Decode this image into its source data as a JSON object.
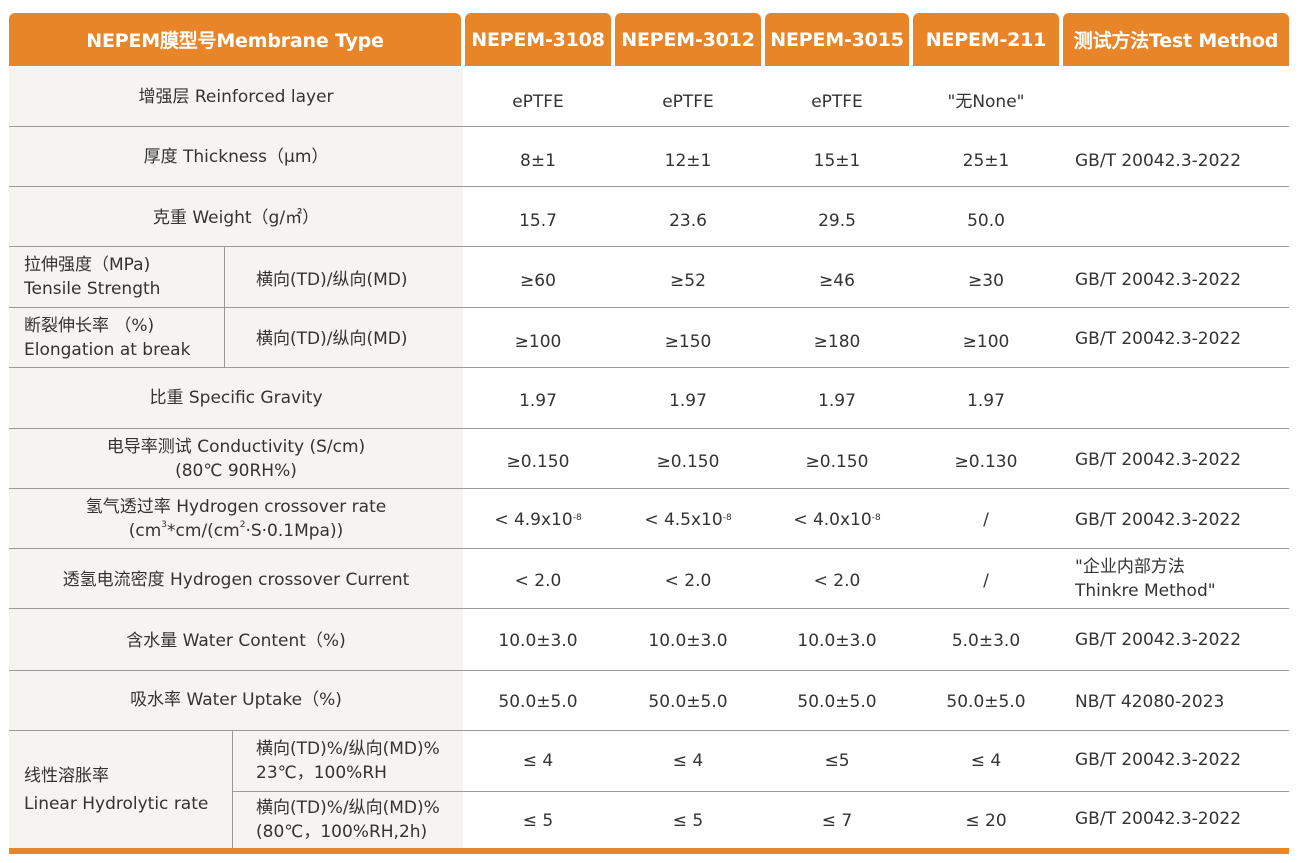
{
  "header": {
    "type_label": "NEPEM膜型号Membrane Type",
    "products": [
      "NEPEM-3108",
      "NEPEM-3012",
      "NEPEM-3015",
      "NEPEM-211"
    ],
    "method_label": "测试方法Test Method"
  },
  "rows": {
    "reinforced": {
      "label": "增强层 Reinforced layer",
      "values": [
        "ePTFE",
        "ePTFE",
        "ePTFE",
        "\"无None\""
      ],
      "method": ""
    },
    "thickness": {
      "label": "厚度 Thickness（μm）",
      "values": [
        "8±1",
        "12±1",
        "15±1",
        "25±1"
      ],
      "method": "GB/T 20042.3-2022"
    },
    "weight": {
      "label": "克重 Weight（g/㎡）",
      "values": [
        "15.7",
        "23.6",
        "29.5",
        "50.0"
      ],
      "method": ""
    },
    "tensile": {
      "label_line1": "拉伸强度（MPa)",
      "label_line2": "Tensile Strength",
      "sub": "横向(TD)/纵向(MD)",
      "values": [
        "≥60",
        "≥52",
        "≥46",
        "≥30"
      ],
      "method": "GB/T 20042.3-2022"
    },
    "elongation": {
      "label_line1": "断裂伸长率 （%)",
      "label_line2": "Elongation at break",
      "sub": "横向(TD)/纵向(MD)",
      "values": [
        "≥100",
        "≥150",
        "≥180",
        "≥100"
      ],
      "method": "GB/T 20042.3-2022"
    },
    "gravity": {
      "label": "比重 Specific Gravity",
      "values": [
        "1.97",
        "1.97",
        "1.97",
        "1.97"
      ],
      "method": ""
    },
    "conductivity": {
      "label_line1": "电导率测试 Conductivity (S/cm)",
      "label_line2": "(80℃ 90RH%)",
      "values": [
        "≥0.150",
        "≥0.150",
        "≥0.150",
        "≥0.130"
      ],
      "method": "GB/T 20042.3-2022"
    },
    "h2_rate": {
      "label_line1": "氢气透过率 Hydrogen crossover rate",
      "label_line2_a": "(cm",
      "label_line2_sup1": "3",
      "label_line2_b": "*cm/(cm",
      "label_line2_sup2": "2",
      "label_line2_c": "·S·0.1Mpa))",
      "values": [
        {
          "base": "< 4.9x10",
          "exp": "-8"
        },
        {
          "base": "< 4.5x10",
          "exp": "-8"
        },
        {
          "base": "< 4.0x10",
          "exp": "-8"
        },
        {
          "base": "/",
          "exp": ""
        }
      ],
      "method": "GB/T 20042.3-2022"
    },
    "h2_current": {
      "label": "透氢电流密度 Hydrogen crossover Current",
      "values": [
        "< 2.0",
        "< 2.0",
        "< 2.0",
        "/"
      ],
      "method_line1": "\"企业内部方法",
      "method_line2": "Thinkre Method\""
    },
    "water_content": {
      "label": "含水量 Water Content（%)",
      "values": [
        "10.0±3.0",
        "10.0±3.0",
        "10.0±3.0",
        "5.0±3.0"
      ],
      "method": "GB/T 20042.3-2022"
    },
    "water_uptake": {
      "label": "吸水率  Water Uptake（%)",
      "values": [
        "50.0±5.0",
        "50.0±5.0",
        "50.0±5.0",
        "50.0±5.0"
      ],
      "method": "NB/T 42080-2023"
    },
    "linear": {
      "label_line1": "线性溶胀率",
      "label_line2": "Linear Hydrolytic rate",
      "sub1_line1": "横向(TD)%/纵向(MD)%",
      "sub1_line2": "23℃，100%RH",
      "values1": [
        "≤ 4",
        "≤ 4",
        "≤5",
        "≤ 4"
      ],
      "method1": "GB/T 20042.3-2022",
      "sub2_line1": "横向(TD)%/纵向(MD)%",
      "sub2_line2": "(80℃，100%RH,2h)",
      "values2": [
        "≤ 5",
        "≤ 5",
        "≤ 7",
        "≤ 20"
      ],
      "method2": "GB/T 20042.3-2022"
    }
  }
}
